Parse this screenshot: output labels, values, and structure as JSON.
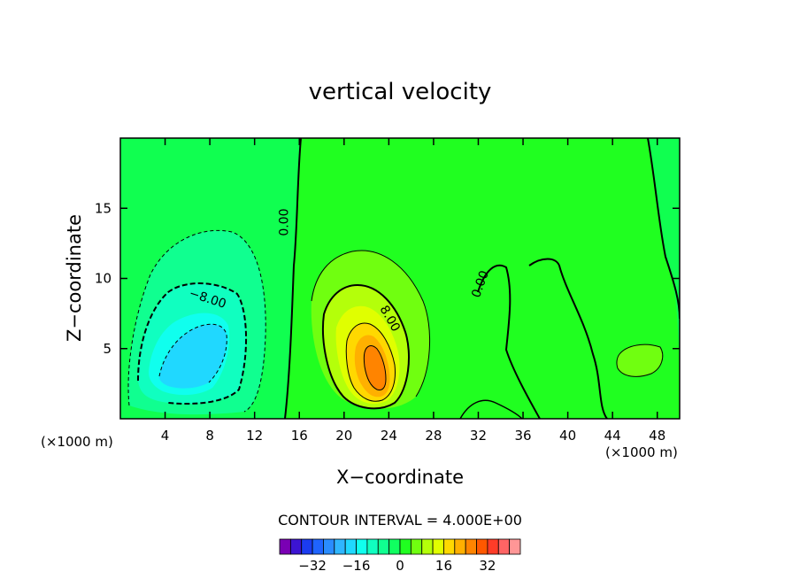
{
  "chart_data": {
    "type": "contour",
    "title": "vertical velocity",
    "xlabel": "X−coordinate",
    "ylabel": "Z−coordinate",
    "x_unit": "(×1000 m)",
    "y_unit": "(×1000 m)",
    "xlim": [
      0,
      50
    ],
    "ylim": [
      0,
      20
    ],
    "x_ticks": [
      4,
      8,
      12,
      16,
      20,
      24,
      28,
      32,
      36,
      40,
      44,
      48
    ],
    "x_tick_labels": [
      "4",
      "8",
      "12",
      "16",
      "20",
      "24",
      "28",
      "32",
      "36",
      "40",
      "44",
      "48"
    ],
    "y_ticks": [
      5,
      10,
      15
    ],
    "y_tick_labels": [
      "5",
      "10",
      "15"
    ],
    "contour_interval_text": "CONTOUR INTERVAL = 4.000E+00",
    "contour_interval": 4.0,
    "contour_labels": [
      {
        "text": "0.00",
        "x": 15.0,
        "y": 14.0
      },
      {
        "text": "0.00",
        "x": 32.5,
        "y": 9.5
      },
      {
        "text": "−8.00",
        "x": 7.7,
        "y": 8.3
      },
      {
        "text": "8.00",
        "x": 23.8,
        "y": 7.0
      }
    ],
    "features": [
      {
        "name": "downdraft",
        "center_x": 6.5,
        "center_y": 5.0,
        "min_value": -24
      },
      {
        "name": "updraft",
        "center_x": 23.0,
        "center_y": 4.0,
        "max_value": 32
      }
    ],
    "colorbar": {
      "tick_values": [
        -32,
        -16,
        0,
        16,
        32
      ],
      "tick_labels": [
        "−32",
        "−16",
        "0",
        "16",
        "32"
      ],
      "colors": [
        "#7a00b4",
        "#3c14d2",
        "#1b3cf0",
        "#1f64ff",
        "#2a8cff",
        "#2fb6ff",
        "#20d8ff",
        "#10ffee",
        "#10ffc0",
        "#10ff90",
        "#10ff60",
        "#20ff20",
        "#70ff10",
        "#b4ff0a",
        "#e0ff00",
        "#ffd800",
        "#ffb000",
        "#ff8400",
        "#ff5800",
        "#ff3c28",
        "#ff6464",
        "#ff9696"
      ]
    }
  }
}
